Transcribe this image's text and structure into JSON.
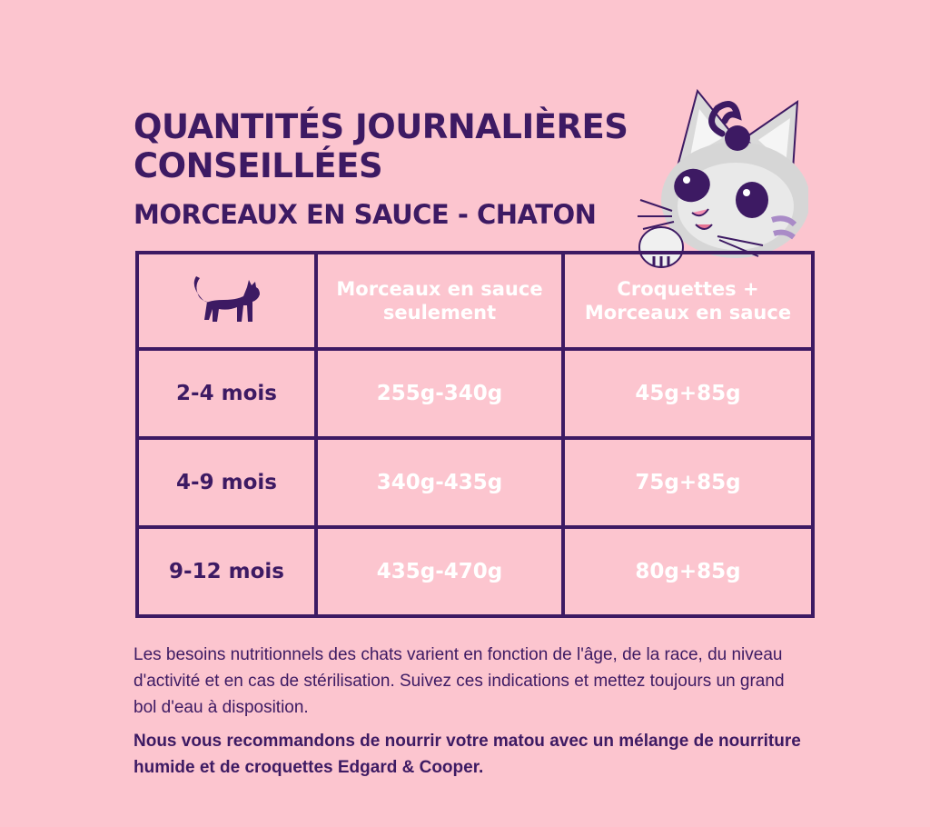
{
  "header": {
    "title": "QUANTITÉS JOURNALIÈRES CONSEILLÉES",
    "subtitle": "MORCEAUX EN SAUCE - CHATON"
  },
  "table": {
    "columns": [
      "Morceaux en sauce seulement",
      "Croquettes + Morceaux en sauce"
    ],
    "rows": [
      {
        "age": "2-4 mois",
        "sauce_only": "255g-340g",
        "mix": "45g+85g"
      },
      {
        "age": "4-9 mois",
        "sauce_only": "340g-435g",
        "mix": "75g+85g"
      },
      {
        "age": "9-12 mois",
        "sauce_only": "435g-470g",
        "mix": "80g+85g"
      }
    ]
  },
  "notes": {
    "paragraph1": "Les besoins nutritionnels des chats varient en fonction de l'âge, de la race, du niveau d'activité et en cas de stérilisation. Suivez ces indications et mettez toujours un grand bol d'eau à disposition.",
    "paragraph2": "Nous vous recommandons de nourrir votre matou avec un mélange de nourriture humide et de croquettes Edgard & Cooper."
  },
  "icons": {
    "header_icon": "cat-silhouette-icon",
    "mascot": "kitten-mascot-illustration"
  },
  "colors": {
    "background": "#fcc5cf",
    "primary": "#3d1a63",
    "header_text": "#ffffff"
  }
}
